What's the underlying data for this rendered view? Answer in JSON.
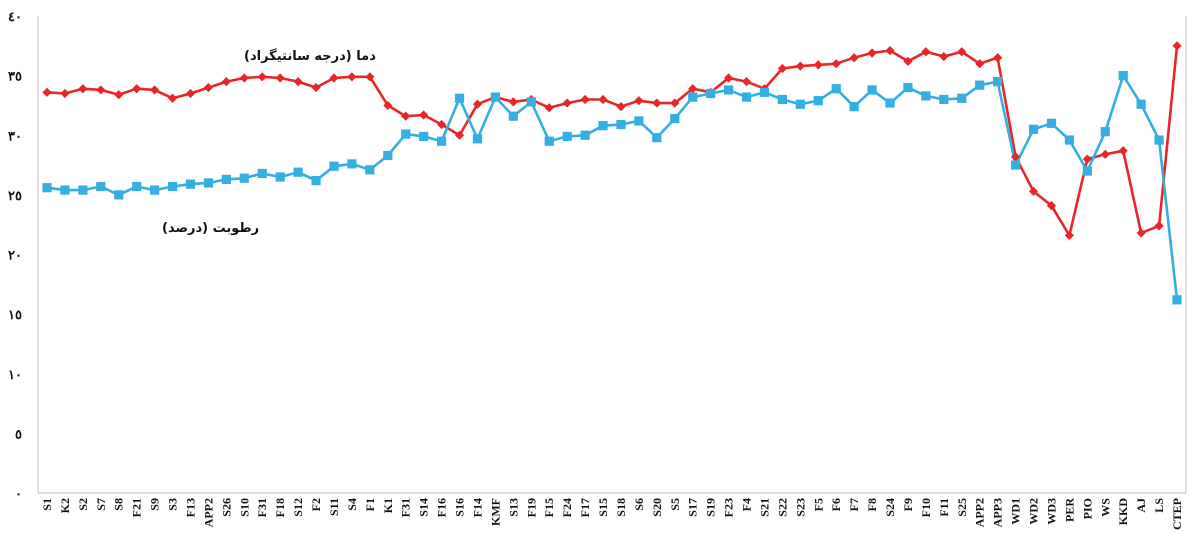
{
  "chart_data": {
    "type": "line",
    "y_tick_labels": [
      "٠",
      "٥",
      "١٠",
      "١٥",
      "٢٠",
      "٢٥",
      "٣٠",
      "٣٥",
      "٤٠"
    ],
    "ylim": [
      0,
      40
    ],
    "grid": false,
    "categories": [
      "S1",
      "K2",
      "S2",
      "S7",
      "S8",
      "F21",
      "S9",
      "S3",
      "F13",
      "APP2",
      "S26",
      "S10",
      "F31",
      "F18",
      "S12",
      "F2",
      "S11",
      "S4",
      "F1",
      "K1",
      "F31",
      "S14",
      "F16",
      "S16",
      "F14",
      "KMF",
      "S13",
      "F19",
      "F15",
      "F24",
      "F17",
      "S15",
      "S18",
      "S6",
      "S20",
      "S5",
      "S17",
      "S19",
      "F23",
      "F4",
      "S21",
      "S22",
      "S23",
      "F5",
      "F6",
      "F7",
      "F8",
      "S24",
      "F9",
      "F10",
      "F11",
      "S25",
      "APP2",
      "APP3",
      "WD1",
      "WD2",
      "WD3",
      "PER",
      "PIO",
      "WS",
      "KKD",
      "AJ",
      "LS",
      "CTEP"
    ],
    "series": [
      {
        "name": "دما (درجه سانتیگراد)",
        "color": "#e8262a",
        "marker": "diamond",
        "values": [
          33.6,
          33.5,
          33.9,
          33.8,
          33.4,
          33.9,
          33.8,
          33.1,
          33.5,
          34.0,
          34.5,
          34.8,
          34.9,
          34.8,
          34.5,
          34.0,
          34.8,
          34.9,
          34.9,
          32.5,
          31.6,
          31.7,
          30.9,
          30.0,
          32.6,
          33.2,
          32.8,
          33.0,
          32.3,
          32.7,
          33.0,
          33.0,
          32.4,
          32.9,
          32.7,
          32.7,
          33.9,
          33.6,
          34.8,
          34.5,
          33.9,
          35.6,
          35.8,
          35.9,
          36.0,
          36.5,
          36.9,
          37.1,
          36.2,
          37.0,
          36.6,
          37.0,
          36.0,
          36.5,
          28.2,
          25.3,
          24.1,
          21.6,
          28.0,
          28.4,
          28.7,
          21.8,
          22.4,
          37.5
        ]
      },
      {
        "name": "رطوبت (درصد)",
        "color": "#35aee2",
        "marker": "square",
        "values": [
          25.6,
          25.4,
          25.4,
          25.7,
          25.0,
          25.7,
          25.4,
          25.7,
          25.9,
          26.0,
          26.3,
          26.4,
          26.8,
          26.5,
          26.9,
          26.2,
          27.4,
          27.6,
          27.1,
          28.3,
          30.1,
          29.9,
          29.5,
          33.1,
          29.7,
          33.2,
          31.6,
          32.8,
          29.5,
          29.9,
          30.0,
          30.8,
          30.9,
          31.2,
          29.8,
          31.4,
          33.2,
          33.5,
          33.8,
          33.2,
          33.6,
          33.0,
          32.6,
          32.9,
          33.9,
          32.4,
          33.8,
          32.7,
          34.0,
          33.3,
          33.0,
          33.1,
          34.2,
          34.5,
          27.5,
          30.5,
          31.0,
          29.6,
          27.0,
          30.3,
          35.0,
          32.6,
          29.6,
          16.2
        ]
      }
    ]
  }
}
